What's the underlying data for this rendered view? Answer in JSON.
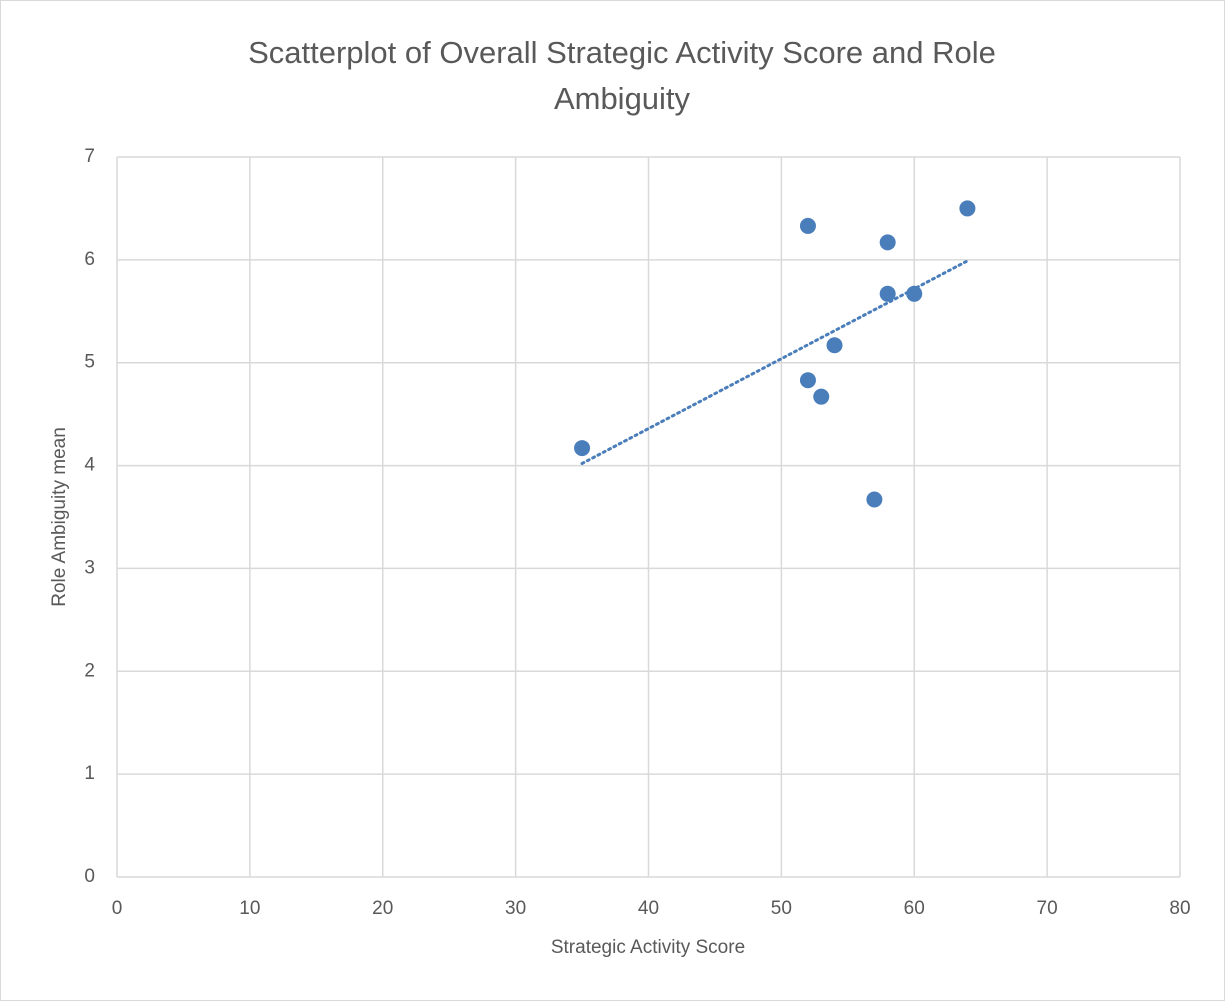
{
  "chart_data": {
    "type": "scatter",
    "title": "Scatterplot of Overall Strategic Activity Score and Role Ambiguity",
    "x_label": "Strategic Activity Score",
    "y_label": "Role Ambiguity mean",
    "color": "#4a7ebb",
    "x": [
      35,
      52,
      52,
      53,
      54,
      57,
      58,
      58,
      60,
      64
    ],
    "values": [
      4.17,
      6.33,
      4.83,
      4.67,
      5.17,
      3.67,
      6.17,
      5.67,
      5.67,
      6.5
    ],
    "trendline": {
      "x": [
        35,
        64
      ],
      "values": [
        4.02,
        5.99
      ]
    },
    "xlim": [
      0,
      80
    ],
    "xticks": [
      0,
      10,
      20,
      30,
      40,
      50,
      60,
      70,
      80
    ],
    "ylim": [
      0,
      7
    ],
    "yticks": [
      0,
      1,
      2,
      3,
      4,
      5,
      6,
      7
    ],
    "grid": true
  }
}
